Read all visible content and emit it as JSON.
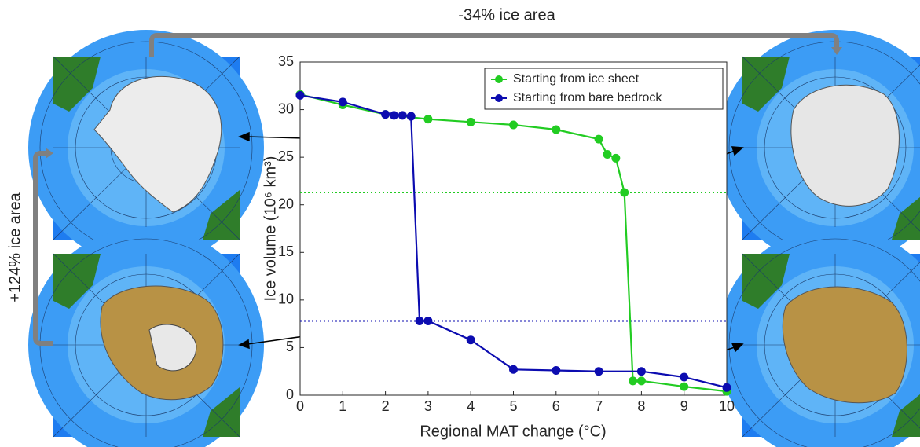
{
  "chart_data": {
    "type": "line",
    "annotations": [
      "-34% ice area",
      "+124% ice area"
    ],
    "xlabel": "Regional MAT change (°C)",
    "ylabel": "Ice volume (10⁶ km³)",
    "series": [
      {
        "name": "Starting from ice sheet",
        "color": "#22cc22",
        "x": [
          0,
          1,
          2,
          3,
          4,
          5,
          6,
          7,
          7.2,
          7.4,
          7.6,
          7.8,
          8,
          9,
          10
        ],
        "values": [
          31.6,
          30.5,
          29.5,
          29.0,
          28.7,
          28.4,
          27.9,
          26.9,
          25.3,
          24.9,
          21.3,
          1.5,
          1.5,
          0.9,
          0.4
        ]
      },
      {
        "name": "Starting from bare bedrock",
        "color": "#0c0cb0",
        "x": [
          0,
          1,
          2,
          2.2,
          2.4,
          2.6,
          2.8,
          3,
          4,
          5,
          6,
          7,
          8,
          9,
          10
        ],
        "values": [
          31.5,
          30.8,
          29.5,
          29.4,
          29.4,
          29.3,
          7.8,
          7.8,
          5.8,
          2.7,
          2.6,
          2.5,
          2.5,
          1.9,
          0.8
        ]
      }
    ],
    "reference_lines": [
      {
        "value": 21.3,
        "color": "#22cc22"
      },
      {
        "value": 7.8,
        "color": "#0c0cb0"
      }
    ],
    "xlim": [
      0,
      10
    ],
    "xticks": [
      0,
      1,
      2,
      3,
      4,
      5,
      6,
      7,
      8,
      9,
      10
    ],
    "ylim": [
      0,
      35
    ],
    "yticks": [
      0,
      5,
      10,
      15,
      20,
      25,
      30,
      35
    ],
    "legend": "upper right"
  }
}
